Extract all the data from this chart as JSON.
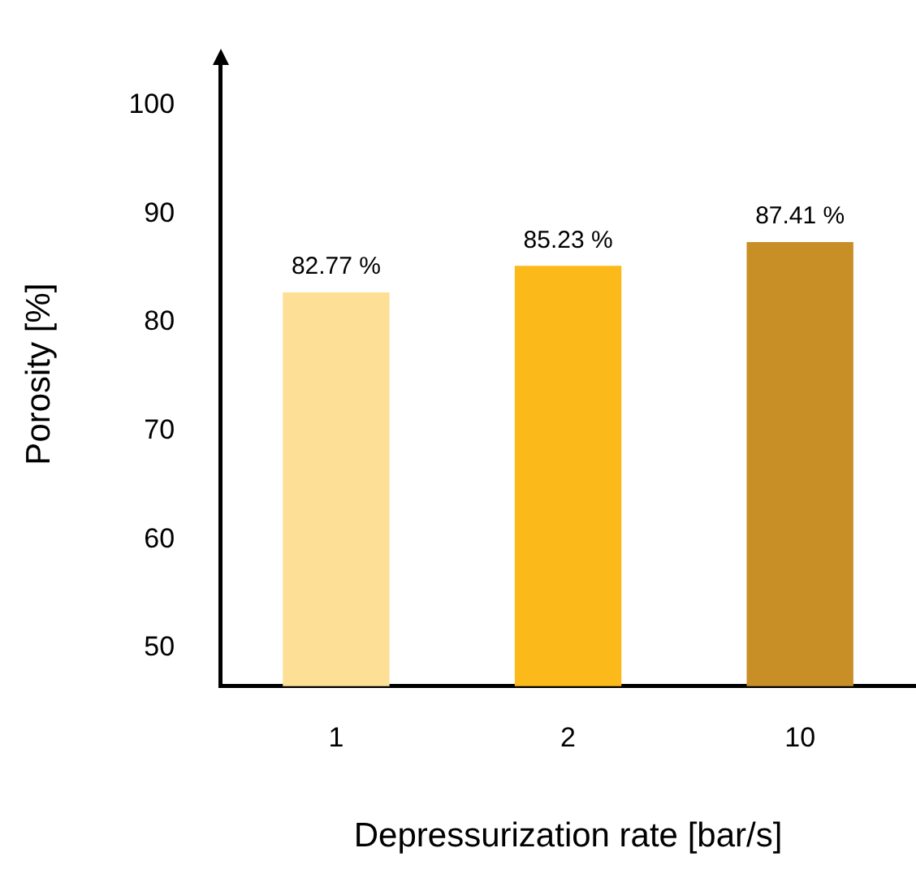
{
  "chart_data": {
    "type": "bar",
    "xlabel": "Depressurization rate [bar/s]",
    "ylabel": "Porosity [%]",
    "categories": [
      "1",
      "2",
      "10"
    ],
    "values": [
      82.77,
      85.23,
      87.41
    ],
    "colors": [
      "#fde096",
      "#fbb91a",
      "#c98f27"
    ],
    "value_labels": [
      "82.77 %",
      "85.23 %",
      "87.41 %"
    ],
    "ylim": [
      46.5,
      104
    ],
    "yticks": [
      50,
      60,
      70,
      80,
      90,
      100
    ],
    "grid": false,
    "legend": false
  }
}
